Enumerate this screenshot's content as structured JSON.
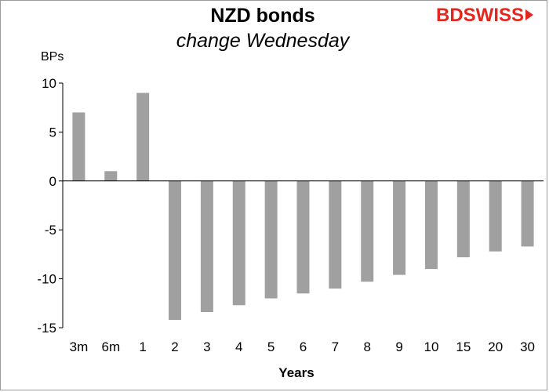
{
  "chart_data": {
    "type": "bar",
    "title": "NZD bonds",
    "subtitle": "change Wednesday",
    "xlabel": "Years",
    "ylabel": "BPs",
    "categories": [
      "3m",
      "6m",
      "1",
      "2",
      "3",
      "4",
      "5",
      "6",
      "7",
      "8",
      "9",
      "10",
      "15",
      "20",
      "30"
    ],
    "values": [
      7,
      1,
      9,
      -14.2,
      -13.4,
      -12.7,
      -12.0,
      -11.5,
      -11.0,
      -10.3,
      -9.6,
      -9.0,
      -7.8,
      -7.2,
      -6.7
    ],
    "ylim": [
      -15,
      10
    ],
    "yticks": [
      10,
      5,
      0,
      -5,
      -10,
      -15
    ],
    "grid": false,
    "bar_color": "#a0a0a0"
  },
  "branding": {
    "logo_part1": "BD",
    "logo_part2": "SWISS"
  }
}
